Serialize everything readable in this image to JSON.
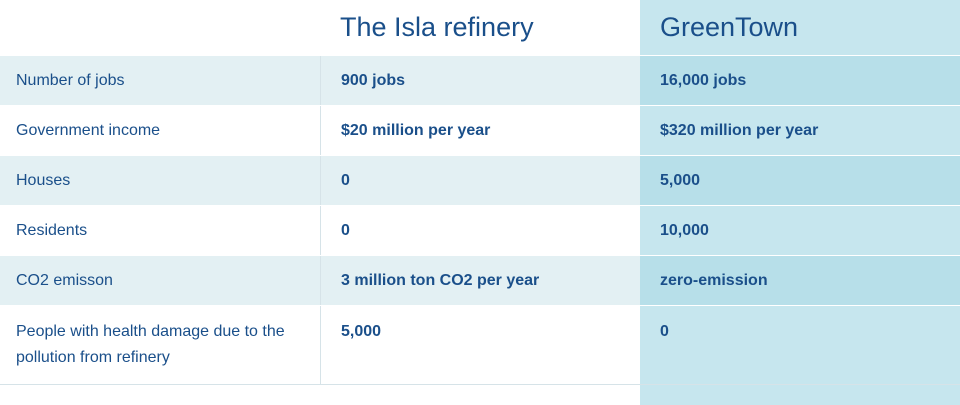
{
  "columns": {
    "option_a": "The Isla refinery",
    "option_b": "GreenTown"
  },
  "rows": [
    {
      "label": "Number of jobs",
      "a": "900 jobs",
      "b": "16,000 jobs"
    },
    {
      "label": "Government income",
      "a": "$20 million per year",
      "b": "$320 million per year"
    },
    {
      "label": "Houses",
      "a": "0",
      "b": "5,000"
    },
    {
      "label": "Residents",
      "a": "0",
      "b": "10,000"
    },
    {
      "label": "CO2 emisson",
      "a": "3 million ton CO2 per year",
      "b": "zero-emission"
    },
    {
      "label": "People with health damage due to the pollution from refinery",
      "a": "5,000",
      "b": "0"
    }
  ],
  "colors": {
    "text": "#1a4f8a",
    "row_shade": "#e3f0f3",
    "highlight_column": "#c6e6ee",
    "highlight_shade": "#b7dfe9"
  }
}
